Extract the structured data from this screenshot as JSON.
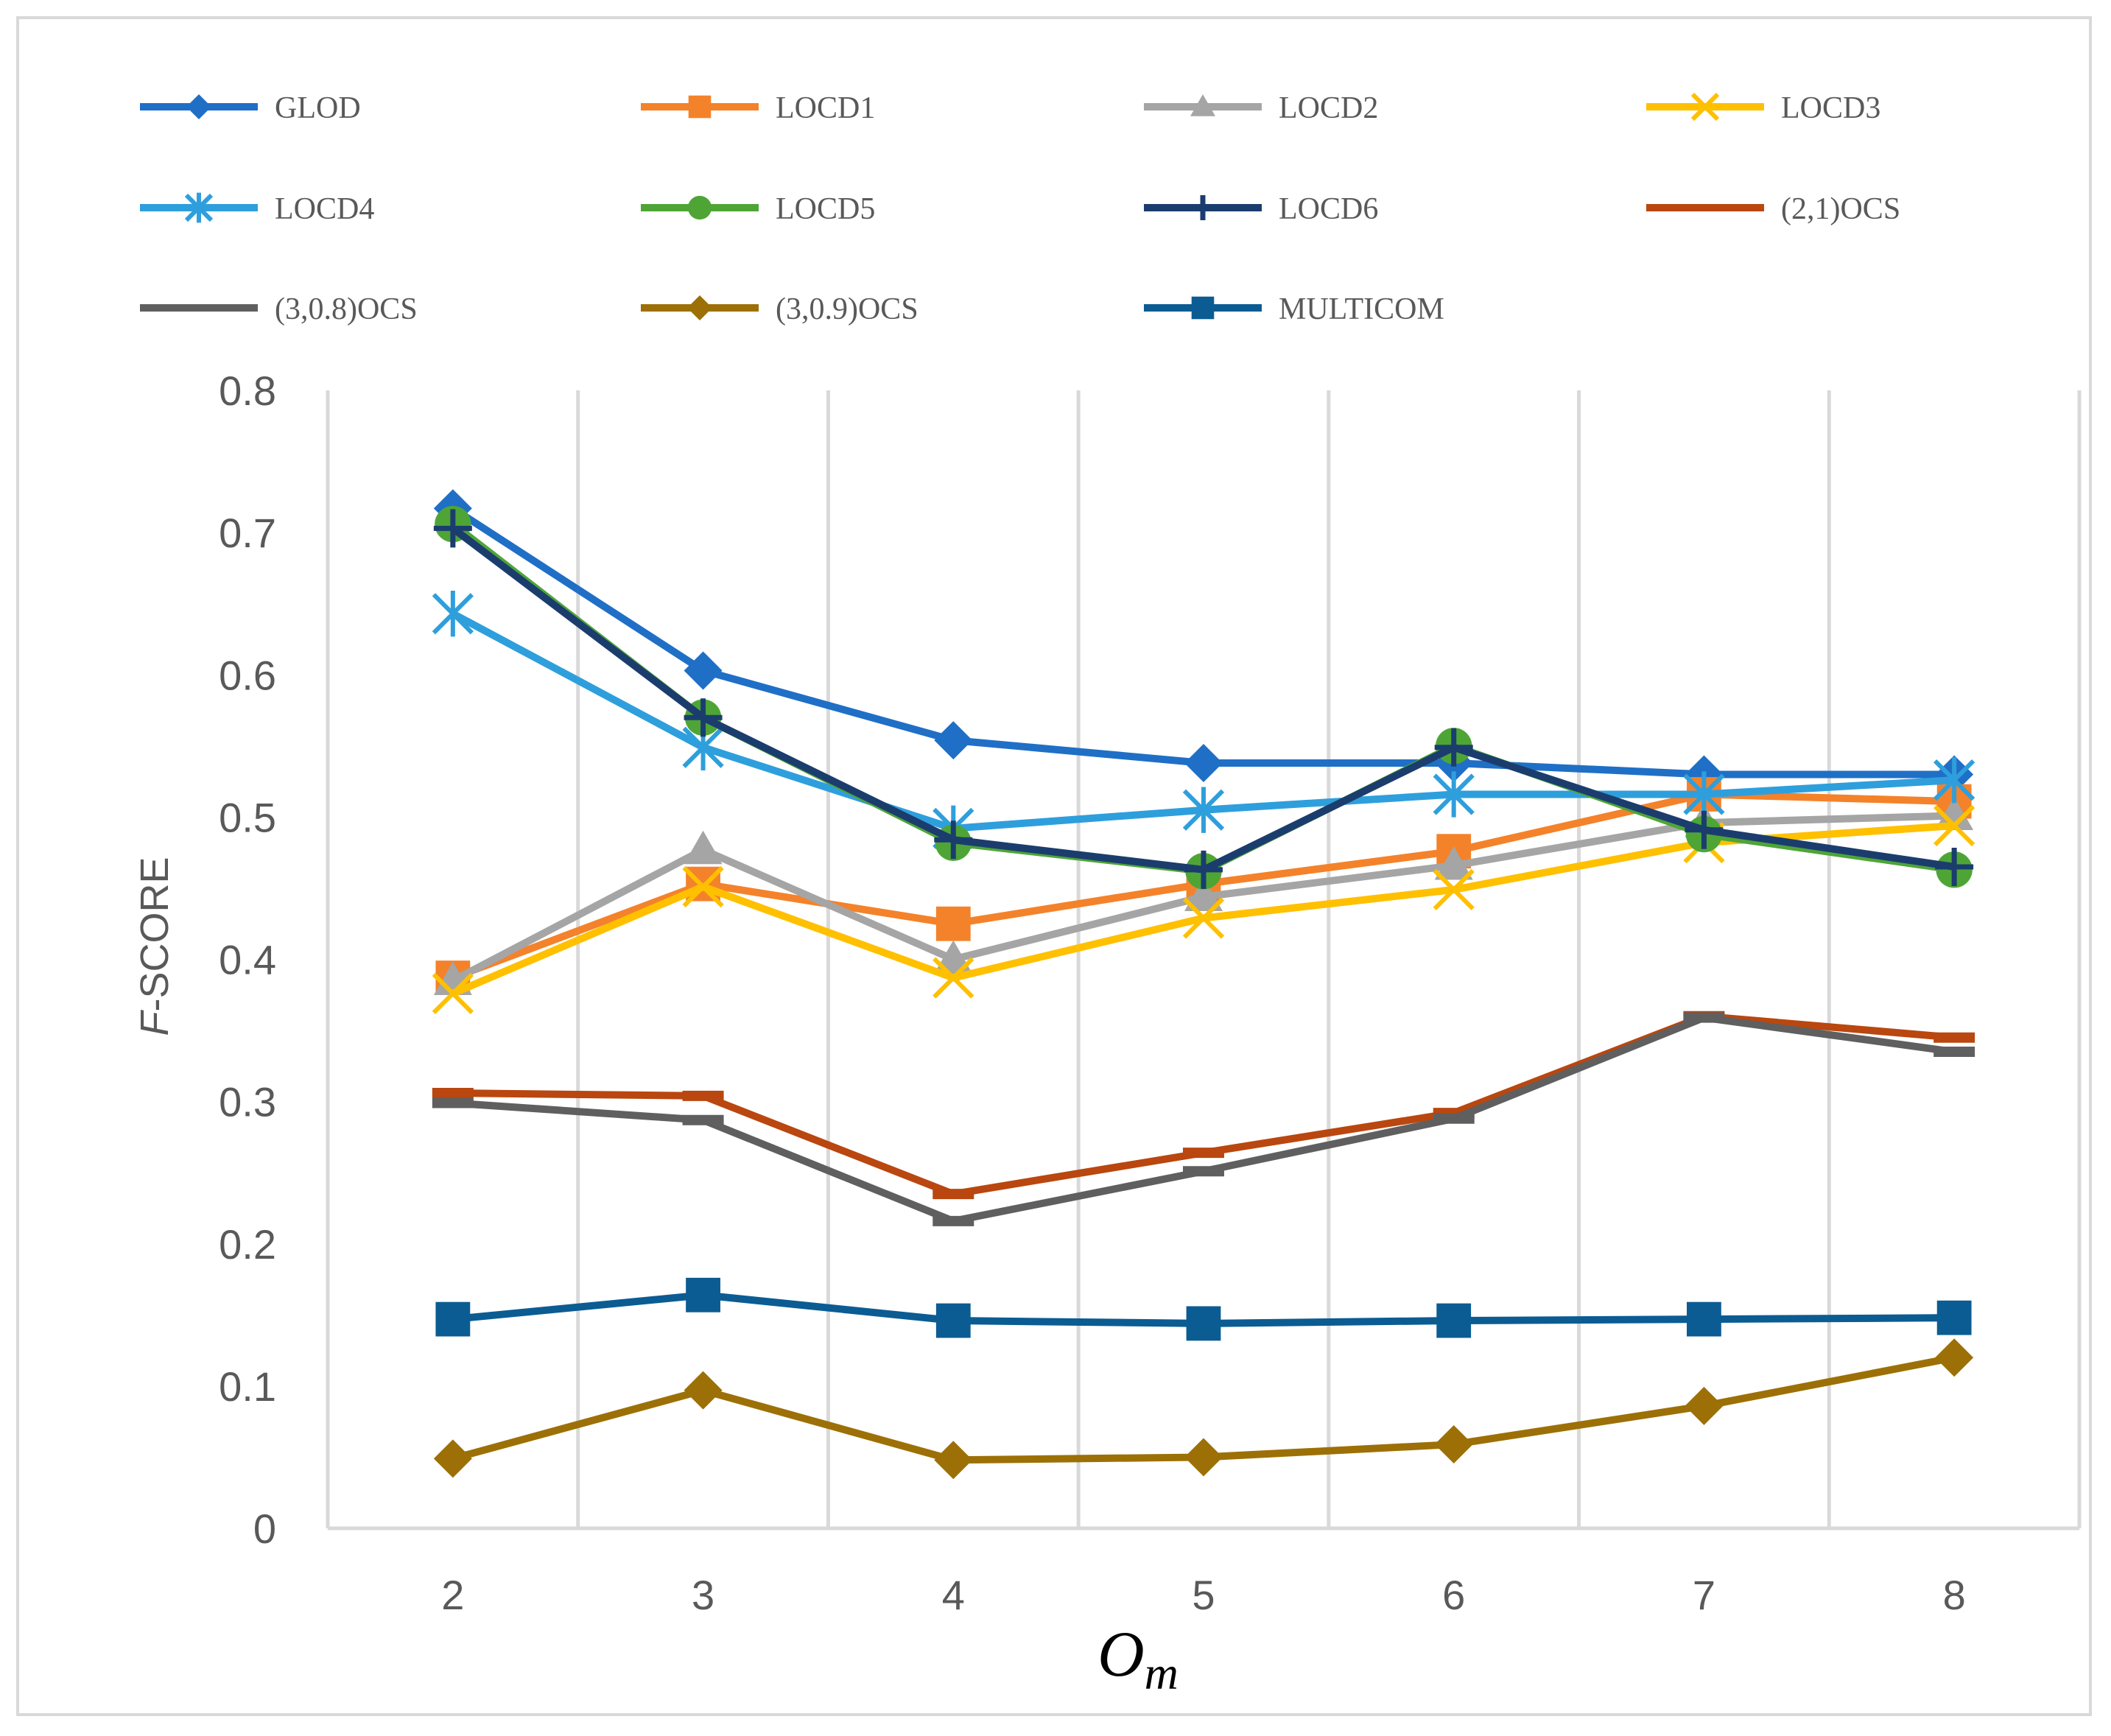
{
  "chart_data": {
    "type": "line",
    "title": "",
    "xlabel_main": "O",
    "xlabel_sub": "m",
    "ylabel_italic": "F",
    "ylabel_rest": "-SCORE",
    "x": [
      2,
      3,
      4,
      5,
      6,
      7,
      8
    ],
    "x_tick_labels": [
      "2",
      "3",
      "4",
      "5",
      "6",
      "7",
      "8"
    ],
    "ylim": [
      0,
      0.8
    ],
    "y_tick_values": [
      0,
      0.1,
      0.2,
      0.3,
      0.4,
      0.5,
      0.6,
      0.7,
      0.8
    ],
    "y_tick_labels": [
      "0",
      "0.1",
      "0.2",
      "0.3",
      "0.4",
      "0.5",
      "0.6",
      "0.7",
      "0.8"
    ],
    "grid": "vertical",
    "legend_position": "top",
    "series": [
      {
        "name": "GLOD",
        "color": "#1f6fc6",
        "marker": "diamond",
        "values": [
          0.717,
          0.603,
          0.554,
          0.538,
          0.538,
          0.53,
          0.53
        ]
      },
      {
        "name": "LOCD1",
        "color": "#f4822a",
        "marker": "square",
        "values": [
          0.387,
          0.453,
          0.425,
          0.453,
          0.476,
          0.516,
          0.511
        ]
      },
      {
        "name": "LOCD2",
        "color": "#a5a5a5",
        "marker": "triangle",
        "values": [
          0.385,
          0.477,
          0.4,
          0.444,
          0.466,
          0.496,
          0.501
        ]
      },
      {
        "name": "LOCD3",
        "color": "#ffc000",
        "marker": "x",
        "values": [
          0.376,
          0.451,
          0.387,
          0.429,
          0.449,
          0.482,
          0.494
        ]
      },
      {
        "name": "LOCD4",
        "color": "#2e9fdc",
        "marker": "star",
        "values": [
          0.643,
          0.549,
          0.492,
          0.505,
          0.516,
          0.516,
          0.526
        ]
      },
      {
        "name": "LOCD5",
        "color": "#4ea536",
        "marker": "circle",
        "values": [
          0.706,
          0.57,
          0.482,
          0.462,
          0.55,
          0.488,
          0.463
        ]
      },
      {
        "name": "LOCD6",
        "color": "#1b3d6e",
        "marker": "plus",
        "values": [
          0.703,
          0.57,
          0.484,
          0.463,
          0.549,
          0.491,
          0.465
        ]
      },
      {
        "name": "(2,1)OCS",
        "color": "#b9470f",
        "marker": "none",
        "values": [
          0.306,
          0.304,
          0.235,
          0.264,
          0.292,
          0.36,
          0.345
        ]
      },
      {
        "name": "(3,0.8)OCS",
        "color": "#5f5f5f",
        "marker": "none",
        "values": [
          0.299,
          0.287,
          0.216,
          0.251,
          0.288,
          0.359,
          0.335
        ]
      },
      {
        "name": "(3,0.9)OCS",
        "color": "#9c7006",
        "marker": "diamond",
        "values": [
          0.049,
          0.097,
          0.048,
          0.05,
          0.059,
          0.086,
          0.12
        ]
      },
      {
        "name": "MULTICOM",
        "color": "#0b5c92",
        "marker": "square",
        "values": [
          0.147,
          0.164,
          0.146,
          0.144,
          0.146,
          0.147,
          0.148
        ]
      }
    ]
  }
}
